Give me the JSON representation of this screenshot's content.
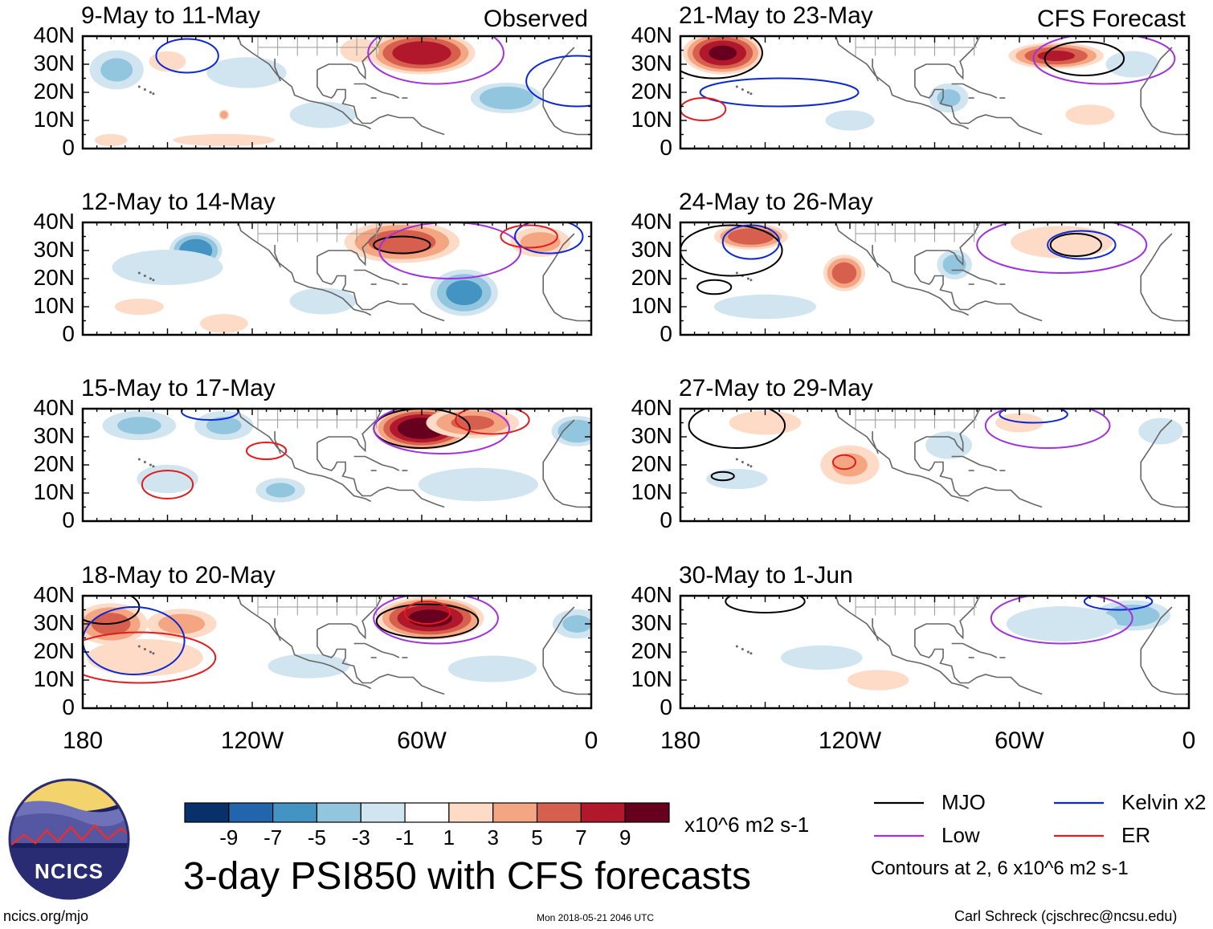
{
  "chart_data": {
    "type": "heatmap",
    "title": "3-day PSI850 with CFS forecasts",
    "variable": "PSI850 anomaly",
    "units": "x10^6 m2 s-1",
    "x_ticks": [
      "180",
      "120W",
      "60W",
      "0"
    ],
    "y_ticks": [
      "40N",
      "30N",
      "20N",
      "10N",
      "0"
    ],
    "xlim": [
      -180,
      0
    ],
    "ylim": [
      0,
      40
    ],
    "modes": [
      {
        "label": "Observed",
        "column": "left"
      },
      {
        "label": "CFS Forecast",
        "column": "right"
      }
    ],
    "colorbar": {
      "ticks": [
        "-9",
        "-7",
        "-5",
        "-3",
        "-1",
        "1",
        "3",
        "5",
        "7",
        "9"
      ],
      "levels": [
        -11,
        -9,
        -7,
        -5,
        -3,
        -1,
        1,
        3,
        5,
        7,
        9,
        11
      ],
      "colors": [
        "#08306b",
        "#2166ac",
        "#4393c3",
        "#92c5de",
        "#d1e5f0",
        "#ffffff",
        "#fddbc7",
        "#f4a582",
        "#d6604d",
        "#b2182b",
        "#67001f"
      ]
    },
    "panels": [
      {
        "title": "9-May to 11-May",
        "source": "Observed",
        "anomalies": [
          {
            "lon": -60,
            "lat": 34,
            "value": 9.0,
            "rx": 20,
            "ry": 8
          },
          {
            "lon": -82,
            "lat": 35,
            "value": 3.0,
            "rx": 8,
            "ry": 5
          },
          {
            "lon": -150,
            "lat": 31,
            "value": 1.5,
            "rx": 9,
            "ry": 5
          },
          {
            "lon": -168,
            "lat": 28,
            "value": -3.5,
            "rx": 11,
            "ry": 8
          },
          {
            "lon": -122,
            "lat": 27,
            "value": -2.0,
            "rx": 18,
            "ry": 7
          },
          {
            "lon": -30,
            "lat": 18,
            "value": -5.0,
            "rx": 14,
            "ry": 6
          },
          {
            "lon": -95,
            "lat": 12,
            "value": -2.0,
            "rx": 15,
            "ry": 6
          },
          {
            "lon": -130,
            "lat": 12,
            "value": 5.0,
            "rx": 2,
            "ry": 2
          },
          {
            "lon": -130,
            "lat": 3,
            "value": 1.5,
            "rx": 25,
            "ry": 3
          },
          {
            "lon": -170,
            "lat": 3,
            "value": 1.5,
            "rx": 8,
            "ry": 3
          }
        ],
        "contours": [
          {
            "mode": "Kelvin",
            "lon": -143,
            "lat": 33,
            "rx": 11,
            "ry": 6
          },
          {
            "mode": "Kelvin",
            "lon": -5,
            "lat": 24,
            "rx": 18,
            "ry": 9
          },
          {
            "mode": "Low",
            "lon": -55,
            "lat": 34,
            "rx": 24,
            "ry": 11
          }
        ]
      },
      {
        "title": "12-May to 14-May",
        "source": "Observed",
        "anomalies": [
          {
            "lon": -67,
            "lat": 33,
            "value": 6.5,
            "rx": 22,
            "ry": 8
          },
          {
            "lon": -18,
            "lat": 33,
            "value": 4.0,
            "rx": 12,
            "ry": 6
          },
          {
            "lon": -140,
            "lat": 30,
            "value": -7.0,
            "rx": 10,
            "ry": 7
          },
          {
            "lon": -150,
            "lat": 24,
            "value": -2.0,
            "rx": 25,
            "ry": 8
          },
          {
            "lon": -45,
            "lat": 15,
            "value": -6.0,
            "rx": 13,
            "ry": 9
          },
          {
            "lon": -95,
            "lat": 12,
            "value": -2.0,
            "rx": 15,
            "ry": 6
          },
          {
            "lon": -130,
            "lat": 4,
            "value": 3.0,
            "rx": 10,
            "ry": 4
          },
          {
            "lon": -160,
            "lat": 10,
            "value": 1.5,
            "rx": 12,
            "ry": 4
          }
        ],
        "contours": [
          {
            "mode": "MJO",
            "lon": -67,
            "lat": 32,
            "rx": 10,
            "ry": 3
          },
          {
            "mode": "Low",
            "lon": -50,
            "lat": 30,
            "rx": 25,
            "ry": 10
          },
          {
            "mode": "Kelvin",
            "lon": -15,
            "lat": 35,
            "rx": 12,
            "ry": 6
          },
          {
            "mode": "ER",
            "lon": -22,
            "lat": 35,
            "rx": 10,
            "ry": 4
          }
        ]
      },
      {
        "title": "15-May to 17-May",
        "source": "Observed",
        "anomalies": [
          {
            "lon": -60,
            "lat": 33,
            "value": 11.0,
            "rx": 18,
            "ry": 8
          },
          {
            "lon": -42,
            "lat": 35,
            "value": 5.5,
            "rx": 18,
            "ry": 6
          },
          {
            "lon": -160,
            "lat": 34,
            "value": -3.5,
            "rx": 15,
            "ry": 6
          },
          {
            "lon": -130,
            "lat": 34,
            "value": -3.5,
            "rx": 12,
            "ry": 6
          },
          {
            "lon": -5,
            "lat": 32,
            "value": -5.0,
            "rx": 10,
            "ry": 6
          },
          {
            "lon": -110,
            "lat": 11,
            "value": -3.5,
            "rx": 10,
            "ry": 5
          },
          {
            "lon": -40,
            "lat": 13,
            "value": -3.0,
            "rx": 25,
            "ry": 7
          },
          {
            "lon": -150,
            "lat": 15,
            "value": -1.5,
            "rx": 15,
            "ry": 7
          }
        ],
        "contours": [
          {
            "mode": "MJO",
            "lon": -60,
            "lat": 33,
            "rx": 17,
            "ry": 7
          },
          {
            "mode": "Low",
            "lon": -53,
            "lat": 33,
            "rx": 24,
            "ry": 9
          },
          {
            "mode": "ER",
            "lon": -150,
            "lat": 13,
            "rx": 9,
            "ry": 5
          },
          {
            "mode": "ER",
            "lon": -115,
            "lat": 25,
            "rx": 7,
            "ry": 3
          },
          {
            "mode": "ER",
            "lon": -35,
            "lat": 36,
            "rx": 13,
            "ry": 5
          },
          {
            "mode": "Kelvin",
            "lon": -135,
            "lat": 39,
            "rx": 10,
            "ry": 3
          }
        ]
      },
      {
        "title": "18-May to 20-May",
        "source": "Observed",
        "anomalies": [
          {
            "lon": -57,
            "lat": 32,
            "value": 10.0,
            "rx": 20,
            "ry": 8
          },
          {
            "lon": -170,
            "lat": 30,
            "value": 6.0,
            "rx": 14,
            "ry": 8
          },
          {
            "lon": -145,
            "lat": 30,
            "value": 4.0,
            "rx": 14,
            "ry": 6
          },
          {
            "lon": -158,
            "lat": 18,
            "value": 2.5,
            "rx": 25,
            "ry": 8
          },
          {
            "lon": -5,
            "lat": 30,
            "value": -3.5,
            "rx": 10,
            "ry": 6
          },
          {
            "lon": -35,
            "lat": 14,
            "value": -2.0,
            "rx": 20,
            "ry": 6
          },
          {
            "lon": -100,
            "lat": 15,
            "value": -1.5,
            "rx": 20,
            "ry": 6
          }
        ],
        "contours": [
          {
            "mode": "MJO",
            "lon": -58,
            "lat": 31,
            "rx": 18,
            "ry": 6
          },
          {
            "mode": "ER",
            "lon": -58,
            "lat": 34,
            "rx": 8,
            "ry": 4
          },
          {
            "mode": "Low",
            "lon": -55,
            "lat": 32,
            "rx": 22,
            "ry": 9
          },
          {
            "mode": "MJO",
            "lon": -172,
            "lat": 36,
            "rx": 12,
            "ry": 6
          },
          {
            "mode": "ER",
            "lon": -160,
            "lat": 18,
            "rx": 27,
            "ry": 9
          },
          {
            "mode": "Kelvin",
            "lon": -162,
            "lat": 24,
            "rx": 18,
            "ry": 12
          }
        ]
      },
      {
        "title": "21-May to 23-May",
        "source": "CFS Forecast",
        "anomalies": [
          {
            "lon": -165,
            "lat": 34,
            "value": 9.5,
            "rx": 15,
            "ry": 8
          },
          {
            "lon": -47,
            "lat": 33,
            "value": 7.5,
            "rx": 18,
            "ry": 5
          },
          {
            "lon": -85,
            "lat": 18,
            "value": -3.5,
            "rx": 8,
            "ry": 6
          },
          {
            "lon": -20,
            "lat": 30,
            "value": -2.0,
            "rx": 12,
            "ry": 6
          },
          {
            "lon": -35,
            "lat": 12,
            "value": 1.5,
            "rx": 12,
            "ry": 5
          },
          {
            "lon": -120,
            "lat": 10,
            "value": -1.5,
            "rx": 12,
            "ry": 5
          }
        ],
        "contours": [
          {
            "mode": "MJO",
            "lon": -37,
            "lat": 32,
            "rx": 14,
            "ry": 6
          },
          {
            "mode": "MJO",
            "lon": -168,
            "lat": 34,
            "rx": 17,
            "ry": 9
          },
          {
            "mode": "Kelvin",
            "lon": -145,
            "lat": 20,
            "rx": 28,
            "ry": 5
          },
          {
            "mode": "ER",
            "lon": -172,
            "lat": 14,
            "rx": 8,
            "ry": 4
          },
          {
            "mode": "Low",
            "lon": -30,
            "lat": 32,
            "rx": 25,
            "ry": 9
          }
        ]
      },
      {
        "title": "24-May to 26-May",
        "source": "CFS Forecast",
        "anomalies": [
          {
            "lon": -155,
            "lat": 35,
            "value": 7.0,
            "rx": 14,
            "ry": 5
          },
          {
            "lon": -122,
            "lat": 22,
            "value": 6.5,
            "rx": 8,
            "ry": 7
          },
          {
            "lon": -45,
            "lat": 33,
            "value": 2.5,
            "rx": 22,
            "ry": 7
          },
          {
            "lon": -83,
            "lat": 25,
            "value": -4.0,
            "rx": 7,
            "ry": 6
          },
          {
            "lon": -150,
            "lat": 10,
            "value": -1.5,
            "rx": 25,
            "ry": 6
          }
        ],
        "contours": [
          {
            "mode": "MJO",
            "lon": -162,
            "lat": 30,
            "rx": 18,
            "ry": 9
          },
          {
            "mode": "MJO",
            "lon": -168,
            "lat": 17,
            "rx": 6,
            "ry": 2.5
          },
          {
            "mode": "MJO",
            "lon": -40,
            "lat": 32,
            "rx": 9,
            "ry": 4
          },
          {
            "mode": "Kelvin",
            "lon": -38,
            "lat": 32,
            "rx": 12,
            "ry": 5
          },
          {
            "mode": "Kelvin",
            "lon": -155,
            "lat": 33,
            "rx": 10,
            "ry": 6
          },
          {
            "mode": "Low",
            "lon": -45,
            "lat": 32,
            "rx": 30,
            "ry": 10
          }
        ]
      },
      {
        "title": "27-May to 29-May",
        "source": "CFS Forecast",
        "anomalies": [
          {
            "lon": -150,
            "lat": 35,
            "value": 3.0,
            "rx": 15,
            "ry": 5
          },
          {
            "lon": -120,
            "lat": 20,
            "value": 3.5,
            "rx": 12,
            "ry": 8
          },
          {
            "lon": -60,
            "lat": 35,
            "value": 3.0,
            "rx": 10,
            "ry": 4
          },
          {
            "lon": -85,
            "lat": 27,
            "value": -2.5,
            "rx": 10,
            "ry": 6
          },
          {
            "lon": -10,
            "lat": 32,
            "value": -2.0,
            "rx": 10,
            "ry": 6
          },
          {
            "lon": -160,
            "lat": 15,
            "value": -1.5,
            "rx": 15,
            "ry": 5
          }
        ],
        "contours": [
          {
            "mode": "MJO",
            "lon": -160,
            "lat": 34,
            "rx": 17,
            "ry": 8
          },
          {
            "mode": "MJO",
            "lon": -165,
            "lat": 16,
            "rx": 4,
            "ry": 1.5
          },
          {
            "mode": "ER",
            "lon": -122,
            "lat": 21,
            "rx": 4,
            "ry": 2.5
          },
          {
            "mode": "Kelvin",
            "lon": -55,
            "lat": 38,
            "rx": 12,
            "ry": 3
          },
          {
            "mode": "Low",
            "lon": -50,
            "lat": 34,
            "rx": 22,
            "ry": 8
          }
        ]
      },
      {
        "title": "30-May to 1-Jun",
        "source": "CFS Forecast",
        "anomalies": [
          {
            "lon": -20,
            "lat": 33,
            "value": -4.5,
            "rx": 15,
            "ry": 6
          },
          {
            "lon": -45,
            "lat": 30,
            "value": -2.0,
            "rx": 25,
            "ry": 8
          },
          {
            "lon": -130,
            "lat": 18,
            "value": -1.5,
            "rx": 20,
            "ry": 6
          },
          {
            "lon": -110,
            "lat": 10,
            "value": 1.5,
            "rx": 15,
            "ry": 5
          }
        ],
        "contours": [
          {
            "mode": "MJO",
            "lon": -150,
            "lat": 38,
            "rx": 14,
            "ry": 4
          },
          {
            "mode": "Kelvin",
            "lon": -25,
            "lat": 38,
            "rx": 12,
            "ry": 3
          },
          {
            "mode": "Low",
            "lon": -45,
            "lat": 32,
            "rx": 25,
            "ry": 9
          }
        ]
      }
    ]
  },
  "legend": {
    "items": [
      {
        "name": "MJO",
        "label": "MJO",
        "color": "#000000"
      },
      {
        "name": "Kelvin",
        "label": "Kelvin x2",
        "color": "#0a28d6"
      },
      {
        "name": "Low",
        "label": "Low",
        "color": "#a030e0"
      },
      {
        "name": "ER",
        "label": "ER",
        "color": "#e41a1c"
      }
    ],
    "contour_note": "Contours at 2, 6 x10^6 m2 s-1"
  },
  "colorbar_units": "x10^6 m2 s-1",
  "main_title": "3-day PSI850 with CFS forecasts",
  "footer": {
    "website": "ncics.org/mjo",
    "timestamp": "Mon 2018-05-21 2046 UTC",
    "credit": "Carl Schreck (cjschrec@ncsu.edu)"
  },
  "logo": {
    "text": "NCICS"
  }
}
